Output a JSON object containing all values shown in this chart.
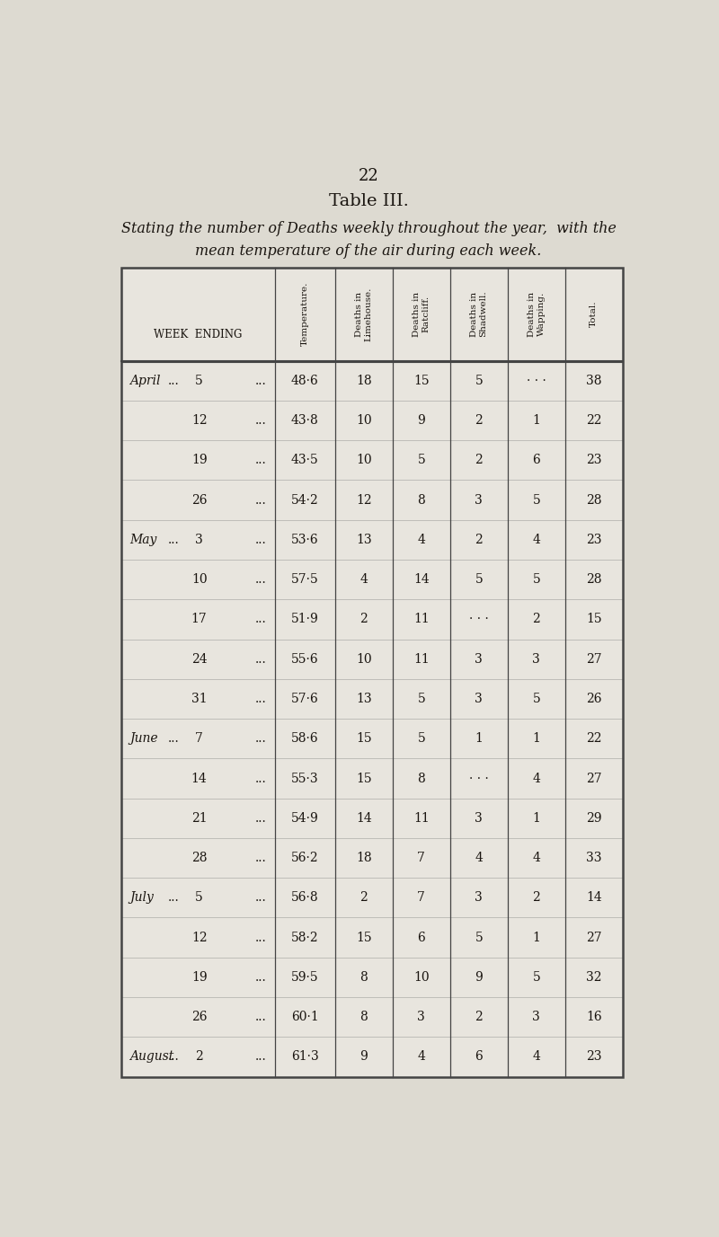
{
  "page_number": "22",
  "table_title": "Table III.",
  "subtitle_line1": "Stating the number of Deaths weekly throughout the year,  with the",
  "subtitle_line2": "mean temperature of the air during each week.",
  "rows": [
    [
      "April",
      "5",
      "48·6",
      "18",
      "15",
      "5",
      "· · ·",
      "38"
    ],
    [
      "",
      "12",
      "43·8",
      "10",
      "9",
      "2",
      "1",
      "22"
    ],
    [
      "",
      "19",
      "43·5",
      "10",
      "5",
      "2",
      "6",
      "23"
    ],
    [
      "",
      "26",
      "54·2",
      "12",
      "8",
      "3",
      "5",
      "28"
    ],
    [
      "May",
      "3",
      "53·6",
      "13",
      "4",
      "2",
      "4",
      "23"
    ],
    [
      "",
      "10",
      "57·5",
      "4",
      "14",
      "5",
      "5",
      "28"
    ],
    [
      "",
      "17",
      "51·9",
      "2",
      "11",
      "· · ·",
      "2",
      "15"
    ],
    [
      "",
      "24",
      "55·6",
      "10",
      "11",
      "3",
      "3",
      "27"
    ],
    [
      "",
      "31",
      "57·6",
      "13",
      "5",
      "3",
      "5",
      "26"
    ],
    [
      "June",
      "7",
      "58·6",
      "15",
      "5",
      "1",
      "1",
      "22"
    ],
    [
      "",
      "14",
      "55·3",
      "15",
      "8",
      "· · ·",
      "4",
      "27"
    ],
    [
      "",
      "21",
      "54·9",
      "14",
      "11",
      "3",
      "1",
      "29"
    ],
    [
      "",
      "28",
      "56·2",
      "18",
      "7",
      "4",
      "4",
      "33"
    ],
    [
      "July",
      "5",
      "56·8",
      "2",
      "7",
      "3",
      "2",
      "14"
    ],
    [
      "",
      "12",
      "58·2",
      "15",
      "6",
      "5",
      "1",
      "27"
    ],
    [
      "",
      "19",
      "59·5",
      "8",
      "10",
      "9",
      "5",
      "32"
    ],
    [
      "",
      "26",
      "60·1",
      "8",
      "3",
      "2",
      "3",
      "16"
    ],
    [
      "August",
      "2",
      "61·3",
      "9",
      "4",
      "6",
      "4",
      "23"
    ]
  ],
  "col_headers_rotated": [
    "Temperature.",
    "Deaths in\nLimehouse.",
    "Deaths in\nRatcliff.",
    "Deaths in\nShadwell.",
    "Deaths in\nWapping.",
    "Total."
  ],
  "bg_color": "#d8d5cc",
  "page_bg": "#dddad1",
  "cell_bg": "#e8e5de",
  "text_color": "#1a1510",
  "line_color": "#444444",
  "thin_line_color": "#888888"
}
